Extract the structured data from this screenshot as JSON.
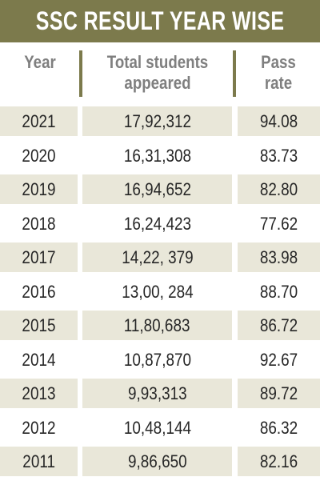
{
  "title": "SSC RESULT YEAR WISE",
  "columns": {
    "year": "Year",
    "total_line1": "Total students",
    "total_line2": "appeared",
    "pass_line1": "Pass",
    "pass_line2": "rate"
  },
  "colors": {
    "title_bg": "#7c7a4c",
    "row_shade": "#e9e7d9",
    "header_text": "#7f7f7f"
  },
  "chart_data": {
    "type": "table",
    "title": "SSC RESULT YEAR WISE",
    "headers": [
      "Year",
      "Total students appeared",
      "Pass rate"
    ],
    "rows": [
      [
        "2021",
        "17,92,312",
        "94.08"
      ],
      [
        "2020",
        "16,31,308",
        "83.73"
      ],
      [
        "2019",
        "16,94,652",
        "82.80"
      ],
      [
        "2018",
        "16,24,423",
        "77.62"
      ],
      [
        "2017",
        "14,22, 379",
        "83.98"
      ],
      [
        "2016",
        "13,00, 284",
        "88.70"
      ],
      [
        "2015",
        "11,80,683",
        "86.72"
      ],
      [
        "2014",
        "10,87,870",
        "92.67"
      ],
      [
        "2013",
        "9,93,313",
        "89.72"
      ],
      [
        "2012",
        "10,48,144",
        "86.32"
      ],
      [
        "2011",
        "9,86,650",
        "82.16"
      ]
    ]
  }
}
